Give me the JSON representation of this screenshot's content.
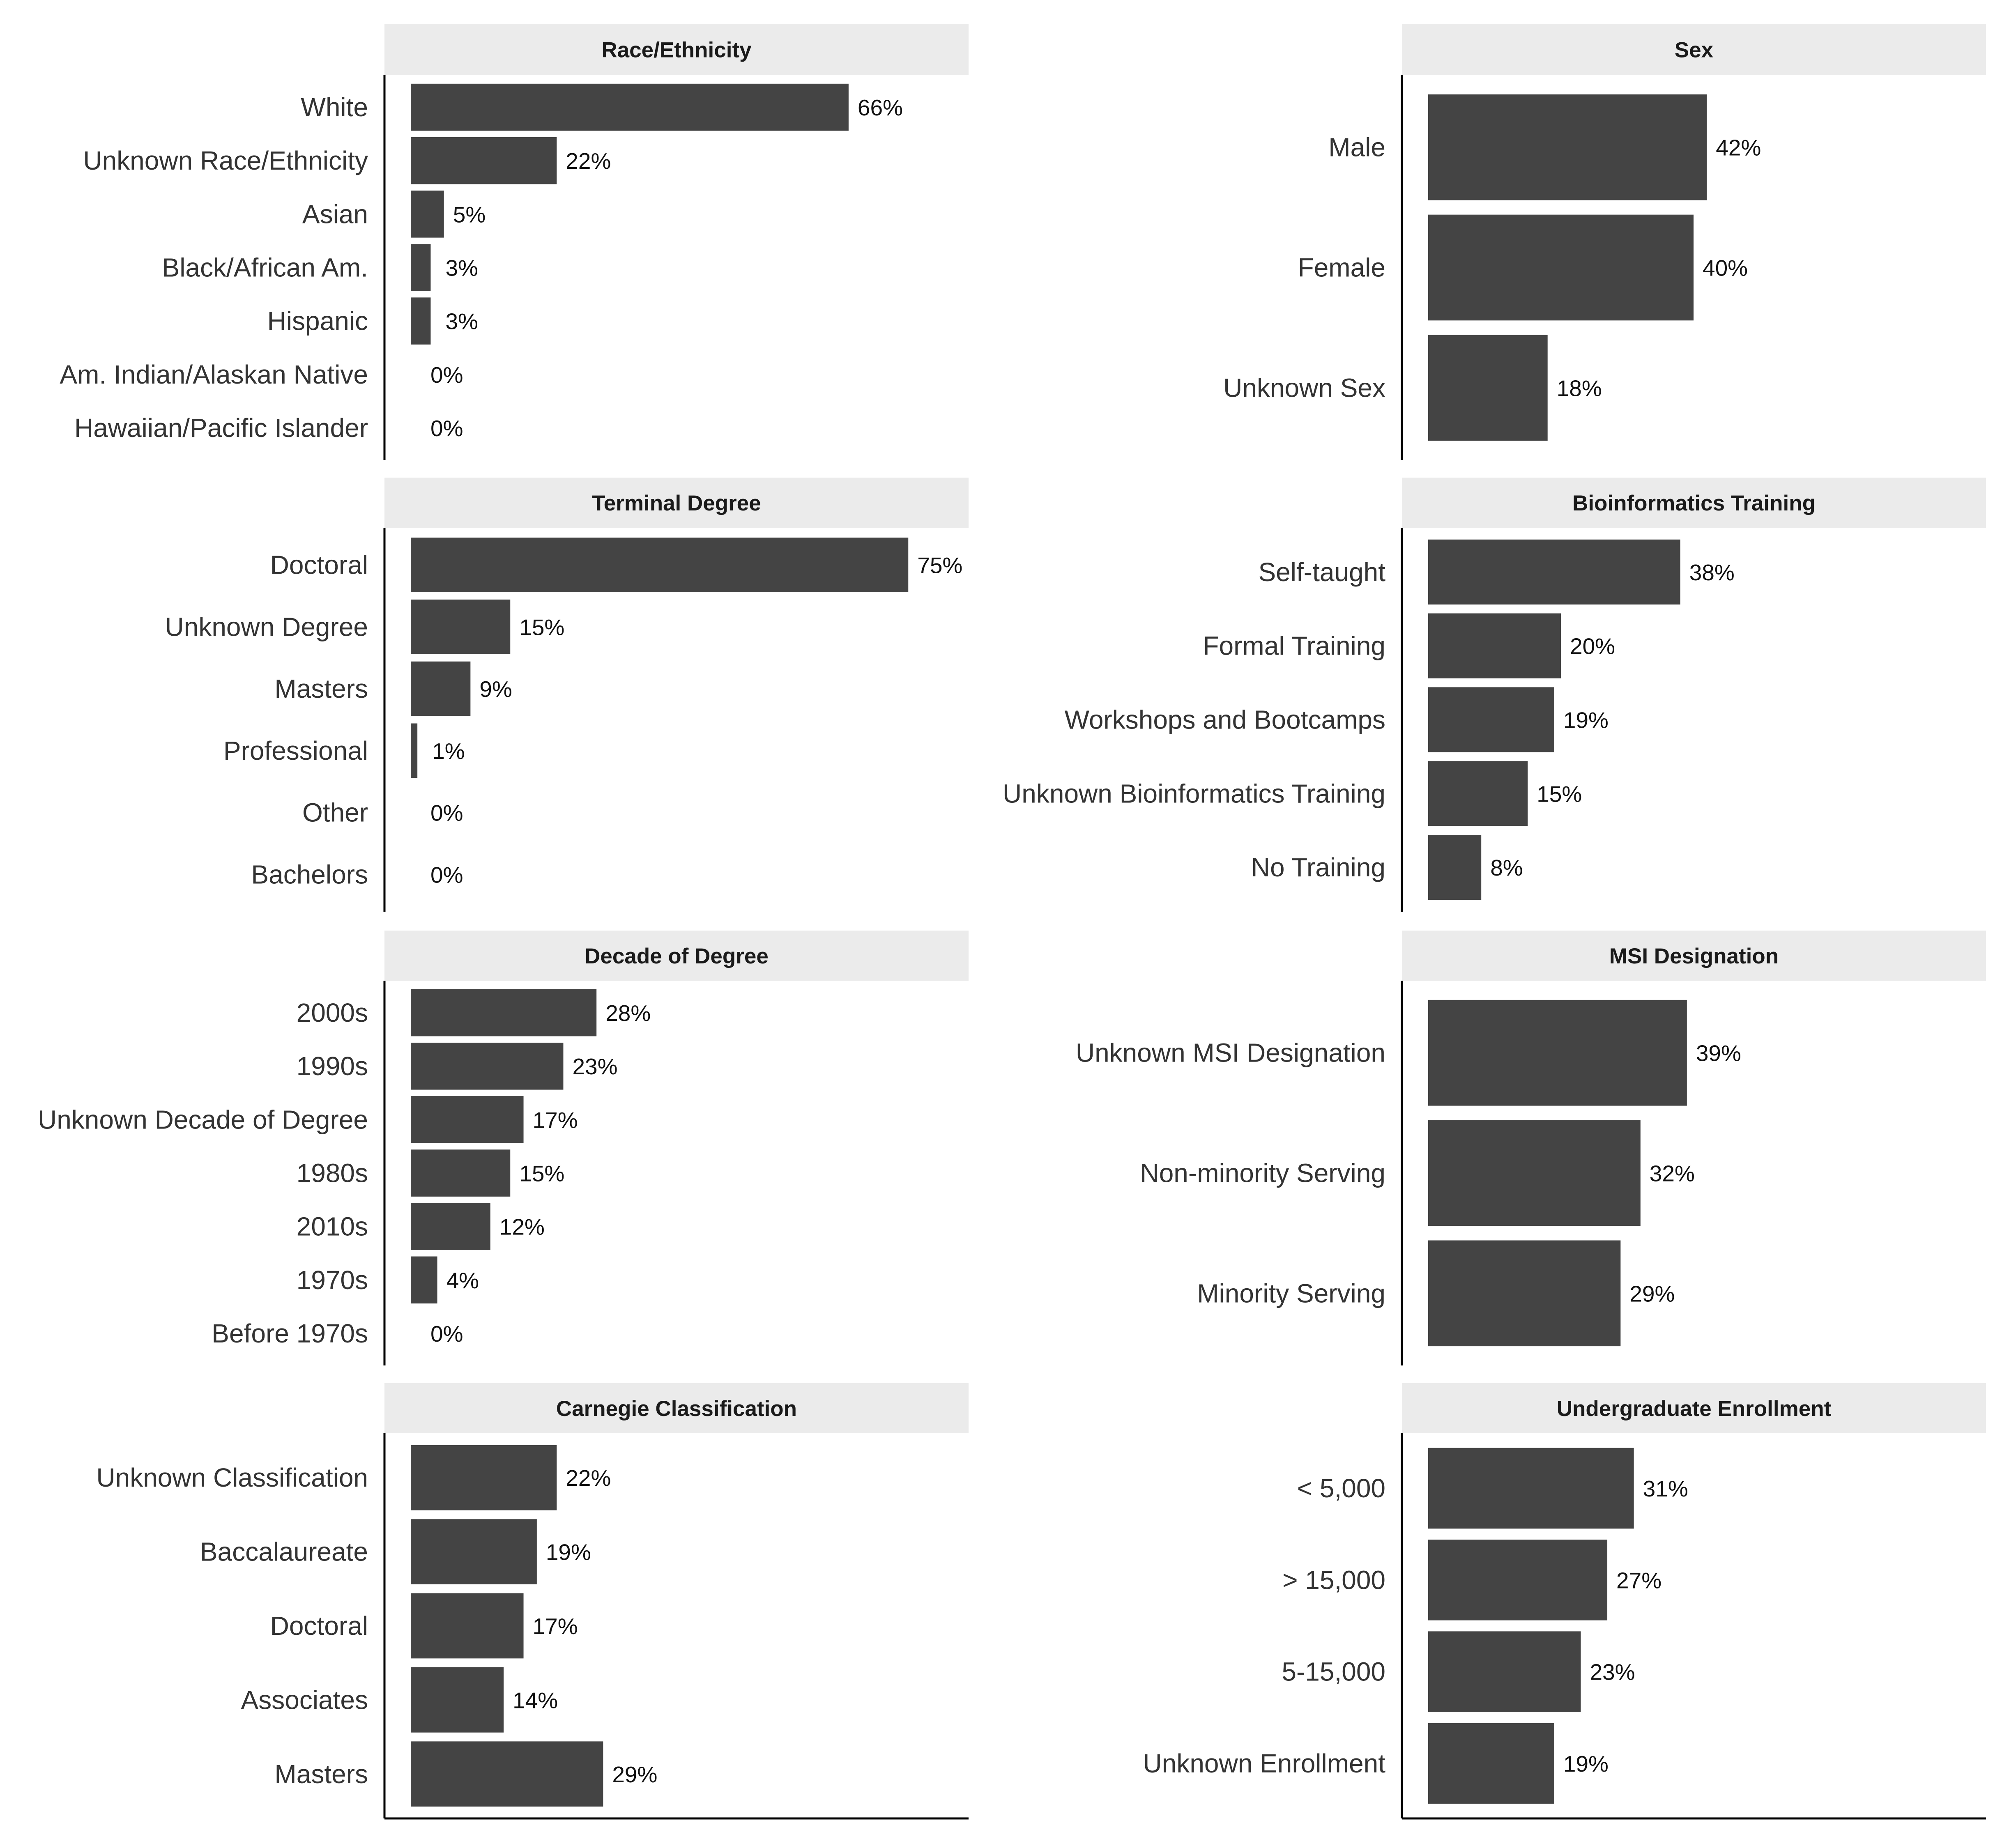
{
  "colors": {
    "bar": "#444444",
    "strip": "#ebebeb",
    "axis": "#000000",
    "background": "#ffffff"
  },
  "chart_data": [
    {
      "type": "bar",
      "orientation": "horizontal",
      "title": "Race/Ethnicity",
      "categories": [
        "White",
        "Unknown Race/Ethnicity",
        "Asian",
        "Black/African Am.",
        "Hispanic",
        "Am. Indian/Alaskan Native",
        "Hawaiian/Pacific Islander"
      ],
      "values": [
        66,
        22,
        5,
        3,
        3,
        0,
        0
      ],
      "value_labels": [
        "66%",
        "22%",
        "5%",
        "3%",
        "3%",
        "0%",
        "0%"
      ],
      "xlim": [
        0,
        80
      ]
    },
    {
      "type": "bar",
      "orientation": "horizontal",
      "title": "Sex",
      "categories": [
        "Male",
        "Female",
        "Unknown Sex"
      ],
      "values": [
        42,
        40,
        18
      ],
      "value_labels": [
        "42%",
        "40%",
        "18%"
      ],
      "xlim": [
        0,
        80
      ]
    },
    {
      "type": "bar",
      "orientation": "horizontal",
      "title": "Terminal Degree",
      "categories": [
        "Doctoral",
        "Unknown Degree",
        "Masters",
        "Professional",
        "Other",
        "Bachelors"
      ],
      "values": [
        75,
        15,
        9,
        1,
        0,
        0
      ],
      "value_labels": [
        "75%",
        "15%",
        "9%",
        "1%",
        "0%",
        "0%"
      ],
      "xlim": [
        0,
        80
      ]
    },
    {
      "type": "bar",
      "orientation": "horizontal",
      "title": "Bioinformatics Training",
      "categories": [
        "Self-taught",
        "Formal Training",
        "Workshops and Bootcamps",
        "Unknown Bioinformatics Training",
        "No Training"
      ],
      "values": [
        38,
        20,
        19,
        15,
        8
      ],
      "value_labels": [
        "38%",
        "20%",
        "19%",
        "15%",
        "8%"
      ],
      "xlim": [
        0,
        80
      ]
    },
    {
      "type": "bar",
      "orientation": "horizontal",
      "title": "Decade of Degree",
      "categories": [
        "2000s",
        "1990s",
        "Unknown Decade of Degree",
        "1980s",
        "2010s",
        "1970s",
        "Before 1970s"
      ],
      "values": [
        28,
        23,
        17,
        15,
        12,
        4,
        0
      ],
      "value_labels": [
        "28%",
        "23%",
        "17%",
        "15%",
        "12%",
        "4%",
        "0%"
      ],
      "xlim": [
        0,
        80
      ]
    },
    {
      "type": "bar",
      "orientation": "horizontal",
      "title": "MSI Designation",
      "categories": [
        "Unknown MSI Designation",
        "Non-minority Serving",
        "Minority Serving"
      ],
      "values": [
        39,
        32,
        29
      ],
      "value_labels": [
        "39%",
        "32%",
        "29%"
      ],
      "xlim": [
        0,
        80
      ]
    },
    {
      "type": "bar",
      "orientation": "horizontal",
      "title": "Carnegie Classification",
      "categories": [
        "Unknown Classification",
        "Baccalaureate",
        "Doctoral",
        "Associates",
        "Masters"
      ],
      "values": [
        22,
        19,
        17,
        14,
        29
      ],
      "value_labels": [
        "22%",
        "19%",
        "17%",
        "14%",
        "29%"
      ],
      "xlim": [
        0,
        80
      ]
    },
    {
      "type": "bar",
      "orientation": "horizontal",
      "title": "Undergraduate Enrollment",
      "categories": [
        "< 5,000",
        "> 15,000",
        "5-15,000",
        "Unknown Enrollment"
      ],
      "values": [
        31,
        27,
        23,
        19
      ],
      "value_labels": [
        "31%",
        "27%",
        "23%",
        "19%"
      ],
      "xlim": [
        0,
        80
      ]
    }
  ]
}
